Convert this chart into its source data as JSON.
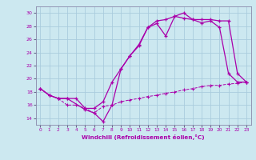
{
  "xlabel": "Windchill (Refroidissement éolien,°C)",
  "background_color": "#cce8f0",
  "grid_color": "#aaccdd",
  "line_color": "#aa00aa",
  "xlim": [
    -0.5,
    23.5
  ],
  "ylim": [
    13,
    31
  ],
  "yticks": [
    14,
    16,
    18,
    20,
    22,
    24,
    26,
    28,
    30
  ],
  "xticks": [
    0,
    1,
    2,
    3,
    4,
    5,
    6,
    7,
    8,
    9,
    10,
    11,
    12,
    13,
    14,
    15,
    16,
    17,
    18,
    19,
    20,
    21,
    22,
    23
  ],
  "series1_x": [
    0,
    1,
    2,
    3,
    4,
    5,
    6,
    7,
    8,
    9,
    10,
    11,
    12,
    13,
    14,
    15,
    16,
    17,
    18,
    19,
    20,
    21,
    22,
    23
  ],
  "series1_y": [
    18.5,
    17.5,
    17.0,
    17.0,
    17.0,
    15.5,
    15.5,
    16.5,
    19.5,
    21.5,
    23.5,
    25.0,
    27.8,
    28.4,
    26.5,
    29.5,
    30.0,
    29.0,
    28.5,
    28.8,
    27.8,
    20.8,
    19.5,
    19.5
  ],
  "series2_x": [
    0,
    1,
    2,
    3,
    5,
    6,
    7,
    8,
    9,
    10,
    11,
    12,
    13,
    14,
    15,
    16,
    17,
    18,
    19,
    20,
    21,
    22,
    23
  ],
  "series2_y": [
    18.5,
    17.5,
    17.0,
    17.0,
    15.3,
    14.8,
    13.5,
    16.0,
    21.5,
    23.5,
    25.2,
    27.8,
    28.8,
    29.0,
    29.5,
    29.2,
    29.0,
    29.0,
    29.0,
    28.8,
    28.8,
    20.8,
    19.5
  ],
  "series3_x": [
    0,
    1,
    2,
    3,
    4,
    5,
    6,
    7,
    8,
    9,
    10,
    11,
    12,
    13,
    14,
    15,
    16,
    17,
    18,
    19,
    20,
    21,
    22,
    23
  ],
  "series3_y": [
    18.5,
    17.5,
    17.0,
    16.0,
    16.0,
    15.5,
    14.8,
    15.8,
    16.0,
    16.5,
    16.8,
    17.0,
    17.3,
    17.5,
    17.8,
    18.0,
    18.3,
    18.5,
    18.8,
    19.0,
    19.0,
    19.2,
    19.3,
    19.5
  ]
}
